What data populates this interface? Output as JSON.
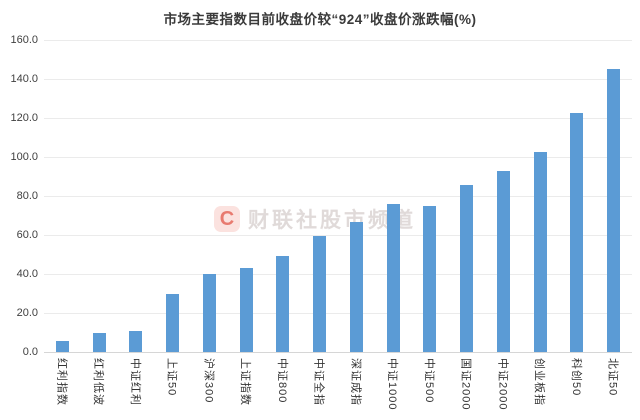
{
  "chart_data": {
    "type": "bar",
    "title": "市场主要指数目前收盘价较“924”收盘价涨跌幅(%)",
    "categories": [
      "红利指数",
      "红利低波",
      "中证红利",
      "上证50",
      "沪深300",
      "上证指数",
      "中证800",
      "中证全指",
      "深证成指",
      "中证1000",
      "中证500",
      "国证2000",
      "中证2000",
      "创业板指",
      "科创50",
      "北证50"
    ],
    "values": [
      5.5,
      9.8,
      11.0,
      29.5,
      40.2,
      43.2,
      49.0,
      59.5,
      66.8,
      75.9,
      75.0,
      85.6,
      93.0,
      102.5,
      122.4,
      145.2
    ],
    "xlabel": "",
    "ylabel": "",
    "ylim": [
      0,
      160
    ],
    "ytick_step": 20,
    "ytick_labels": [
      "0.0",
      "20.0",
      "40.0",
      "60.0",
      "80.0",
      "100.0",
      "120.0",
      "140.0",
      "160.0"
    ],
    "grid": "horizontal",
    "legend": "none",
    "bar_color": "#5b9bd5"
  },
  "watermark": {
    "logo_letter": "C",
    "text": "财联社股市频道"
  },
  "colors": {
    "bar": "#5b9bd5",
    "gridline": "#ebebeb",
    "axis_line": "#d6d6d6",
    "title_text": "#3a3a3a",
    "tick_text": "#404040",
    "background": "#ffffff",
    "watermark_red": "#dc3a2a",
    "watermark_gray": "#bab0ad"
  }
}
